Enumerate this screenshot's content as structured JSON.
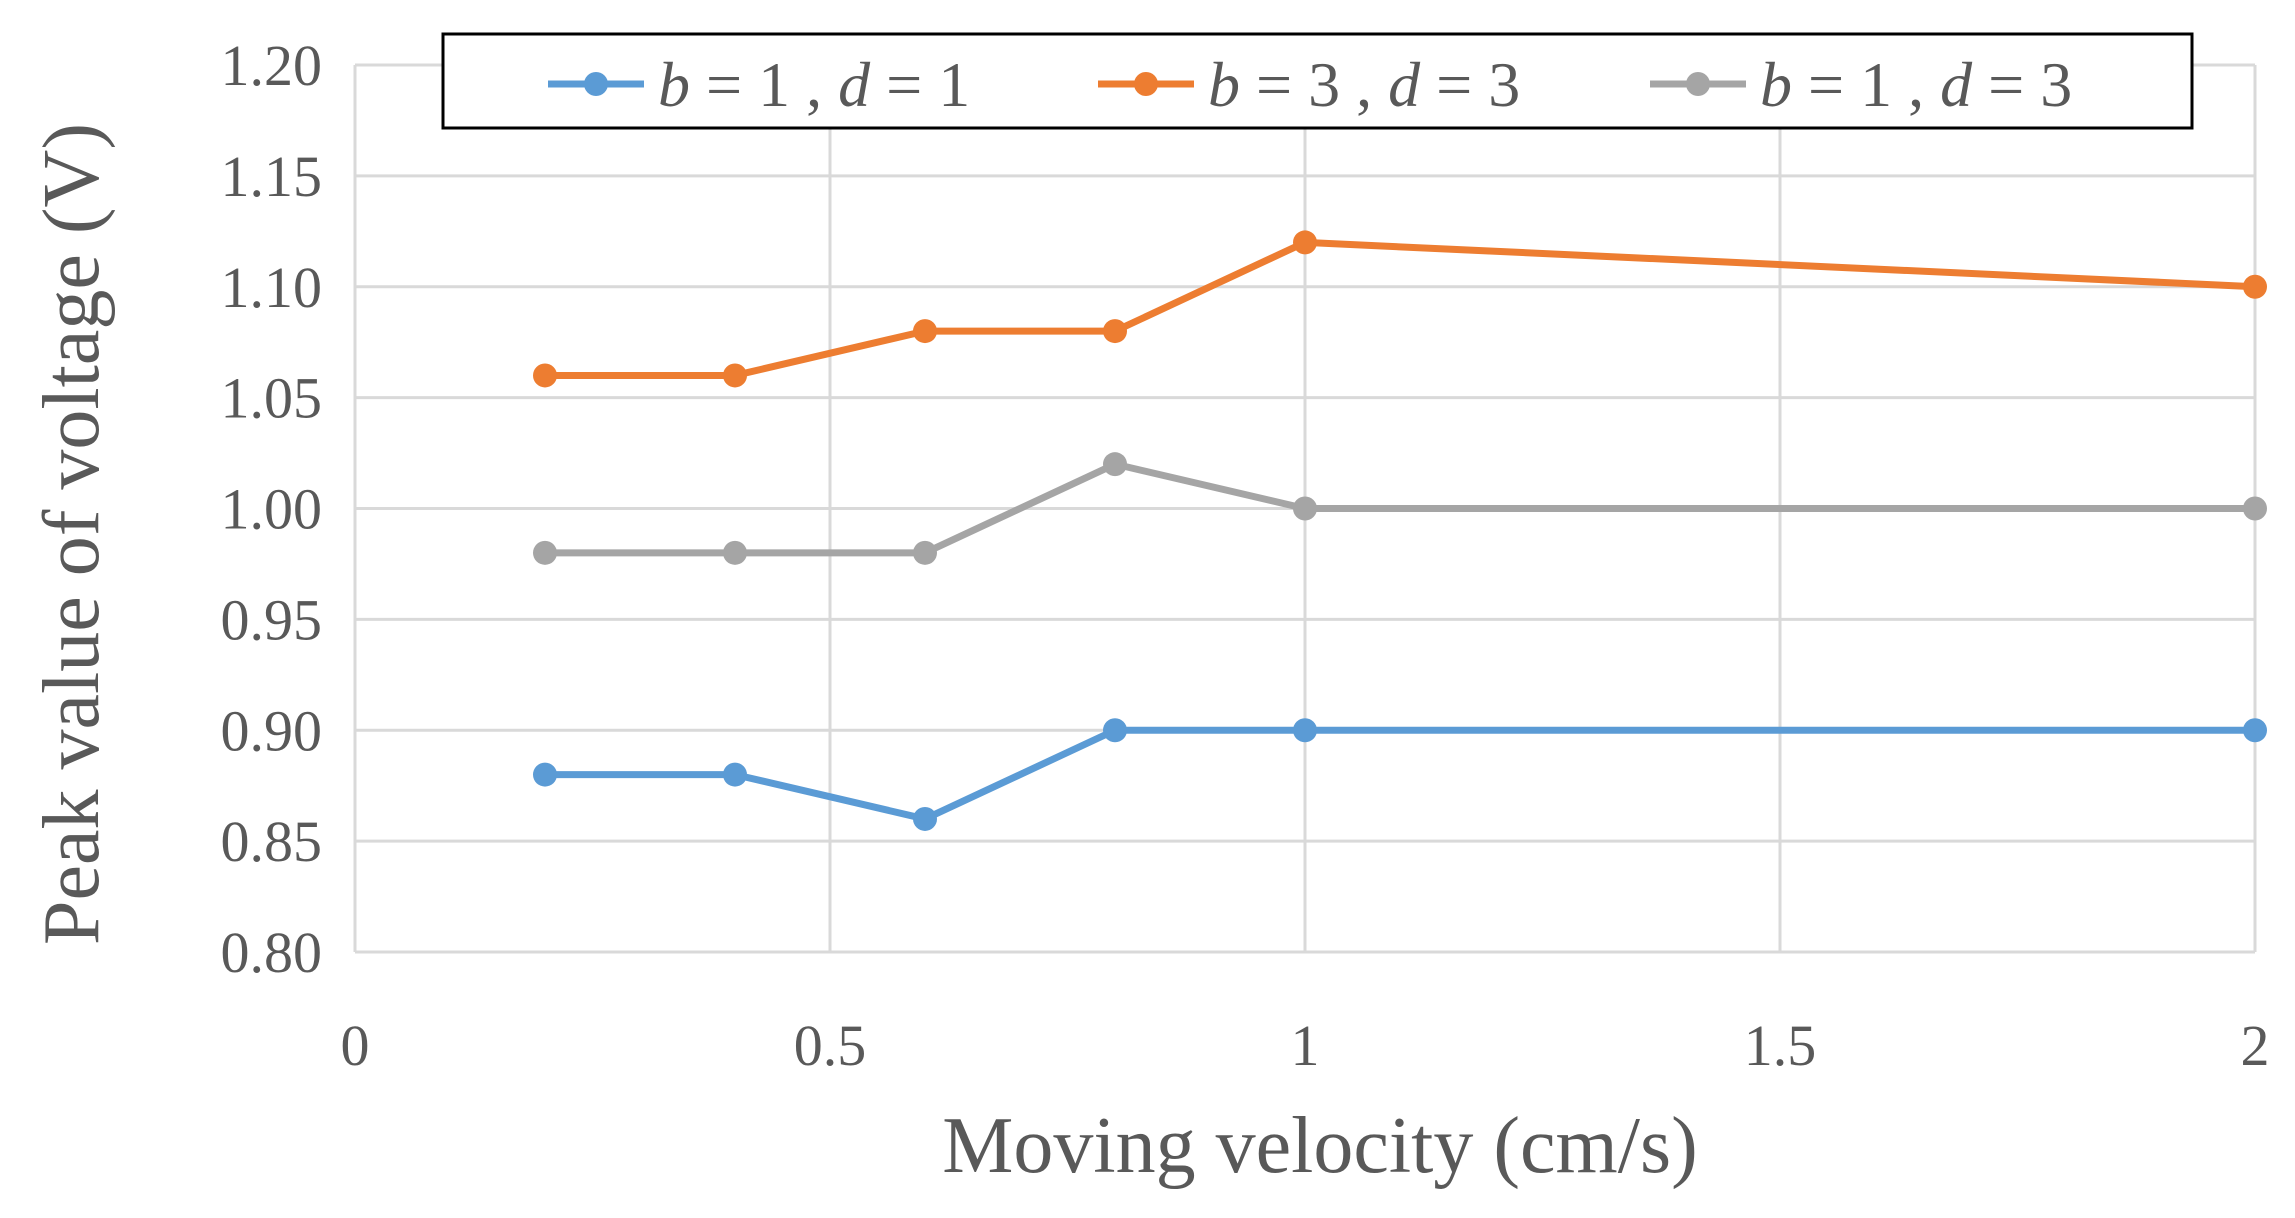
{
  "chart_data": {
    "type": "line",
    "title": "",
    "xlabel": "Moving velocity (cm/s)",
    "ylabel": "Peak value of voltage (V)",
    "xlim": [
      0,
      2
    ],
    "ylim": [
      0.8,
      1.2
    ],
    "xticks": [
      "0",
      "0.5",
      "1",
      "1.5",
      "2"
    ],
    "xtick_values": [
      0,
      0.5,
      1,
      1.5,
      2
    ],
    "yticks": [
      "0.80",
      "0.85",
      "0.90",
      "0.95",
      "1.00",
      "1.05",
      "1.10",
      "1.15",
      "1.20"
    ],
    "ytick_values": [
      0.8,
      0.85,
      0.9,
      0.95,
      1.0,
      1.05,
      1.1,
      1.15,
      1.2
    ],
    "grid": true,
    "legend_position": "top",
    "x": [
      0.2,
      0.4,
      0.6,
      0.8,
      1.0,
      2.0
    ],
    "series": [
      {
        "name": "b = 1 , d = 1",
        "b": "1",
        "d": "1",
        "color": "#5b9bd5",
        "values": [
          0.88,
          0.88,
          0.86,
          0.9,
          0.9,
          0.9
        ]
      },
      {
        "name": "b = 3 , d = 3",
        "b": "3",
        "d": "3",
        "color": "#ed7d31",
        "values": [
          1.06,
          1.06,
          1.08,
          1.08,
          1.12,
          1.1
        ]
      },
      {
        "name": "b = 1 , d = 3",
        "b": "1",
        "d": "3",
        "color": "#a5a5a5",
        "values": [
          0.98,
          0.98,
          0.98,
          1.02,
          1.0,
          1.0
        ]
      }
    ]
  }
}
